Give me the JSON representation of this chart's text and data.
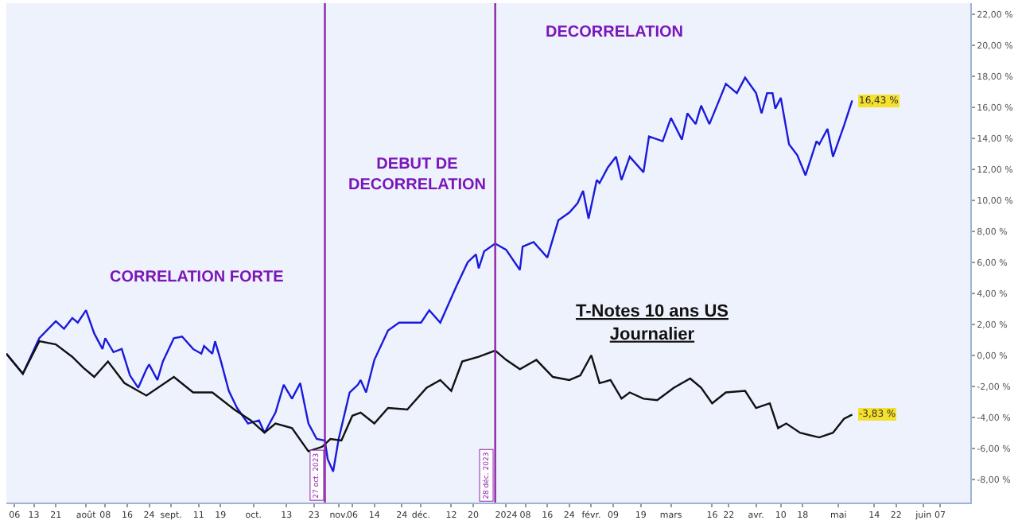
{
  "chart_data": {
    "type": "line",
    "legend": false,
    "grid": false,
    "marker": "none",
    "line_style": "solid",
    "xlim": [
      "2023-07-03",
      "2024-06-18"
    ],
    "ylim": [
      -9.5,
      22.7
    ],
    "xticks": [
      {
        "value": "2023-07-06",
        "label": "06"
      },
      {
        "value": "2023-07-13",
        "label": "13"
      },
      {
        "value": "2023-07-21",
        "label": "21"
      },
      {
        "value": "2023-08-01",
        "label": "août"
      },
      {
        "value": "2023-08-08",
        "label": "08"
      },
      {
        "value": "2023-08-16",
        "label": "16"
      },
      {
        "value": "2023-08-24",
        "label": "24"
      },
      {
        "value": "2023-09-01",
        "label": "sept."
      },
      {
        "value": "2023-09-11",
        "label": "11"
      },
      {
        "value": "2023-09-19",
        "label": "19"
      },
      {
        "value": "2023-10-01",
        "label": "oct."
      },
      {
        "value": "2023-10-13",
        "label": "13"
      },
      {
        "value": "2023-10-23",
        "label": "23"
      },
      {
        "value": "2023-11-01",
        "label": "nov."
      },
      {
        "value": "2023-11-06",
        "label": "06"
      },
      {
        "value": "2023-11-14",
        "label": "14"
      },
      {
        "value": "2023-11-24",
        "label": "24"
      },
      {
        "value": "2023-12-01",
        "label": "déc."
      },
      {
        "value": "2023-12-12",
        "label": "12"
      },
      {
        "value": "2023-12-20",
        "label": "20"
      },
      {
        "value": "2024-01-01",
        "label": "2024"
      },
      {
        "value": "2024-01-08",
        "label": "08"
      },
      {
        "value": "2024-01-16",
        "label": "16"
      },
      {
        "value": "2024-01-24",
        "label": "24"
      },
      {
        "value": "2024-02-01",
        "label": "févr."
      },
      {
        "value": "2024-02-09",
        "label": "09"
      },
      {
        "value": "2024-02-19",
        "label": "19"
      },
      {
        "value": "2024-03-01",
        "label": "mars"
      },
      {
        "value": "2024-03-16",
        "label": "16"
      },
      {
        "value": "2024-03-22",
        "label": "22"
      },
      {
        "value": "2024-04-01",
        "label": "avr."
      },
      {
        "value": "2024-04-10",
        "label": "10"
      },
      {
        "value": "2024-04-18",
        "label": "18"
      },
      {
        "value": "2024-05-01",
        "label": "mai"
      },
      {
        "value": "2024-05-14",
        "label": "14"
      },
      {
        "value": "2024-05-22",
        "label": "22"
      },
      {
        "value": "2024-06-01",
        "label": "juin"
      },
      {
        "value": "2024-06-07",
        "label": "07"
      }
    ],
    "yticks": [
      {
        "value": -8,
        "label": "-8,00 %"
      },
      {
        "value": -6,
        "label": "-6,00 %"
      },
      {
        "value": -4,
        "label": "-4,00 %"
      },
      {
        "value": -2,
        "label": "-2,00 %"
      },
      {
        "value": 0,
        "label": "0,00 %"
      },
      {
        "value": 2,
        "label": "2,00 %"
      },
      {
        "value": 4,
        "label": "4,00 %"
      },
      {
        "value": 6,
        "label": "6,00 %"
      },
      {
        "value": 8,
        "label": "8,00 %"
      },
      {
        "value": 10,
        "label": "10,00 %"
      },
      {
        "value": 12,
        "label": "12,00 %"
      },
      {
        "value": 14,
        "label": "14,00 %"
      },
      {
        "value": 16,
        "label": "16,00 %"
      },
      {
        "value": 18,
        "label": "18,00 %"
      },
      {
        "value": 20,
        "label": "20,00 %"
      },
      {
        "value": 22,
        "label": "22,00 %"
      }
    ],
    "series": [
      {
        "color": "#1a1adb",
        "x": [
          "2023-07-03",
          "2023-07-09",
          "2023-07-15",
          "2023-07-21",
          "2023-07-24",
          "2023-07-27",
          "2023-07-29",
          "2023-08-01",
          "2023-08-04",
          "2023-08-07",
          "2023-08-08",
          "2023-08-11",
          "2023-08-14",
          "2023-08-17",
          "2023-08-20",
          "2023-08-23",
          "2023-08-24",
          "2023-08-27",
          "2023-08-29",
          "2023-09-02",
          "2023-09-05",
          "2023-09-09",
          "2023-09-12",
          "2023-09-13",
          "2023-09-16",
          "2023-09-17",
          "2023-09-19",
          "2023-09-22",
          "2023-09-25",
          "2023-09-29",
          "2023-10-03",
          "2023-10-05",
          "2023-10-09",
          "2023-10-12",
          "2023-10-15",
          "2023-10-18",
          "2023-10-21",
          "2023-10-24",
          "2023-10-27",
          "2023-10-28",
          "2023-10-30",
          "2023-11-01",
          "2023-11-05",
          "2023-11-08",
          "2023-11-09",
          "2023-11-11",
          "2023-11-14",
          "2023-11-19",
          "2023-11-23",
          "2023-12-01",
          "2023-12-04",
          "2023-12-08",
          "2023-12-14",
          "2023-12-18",
          "2023-12-21",
          "2023-12-22",
          "2023-12-24",
          "2023-12-28",
          "2024-01-01",
          "2024-01-06",
          "2024-01-07",
          "2024-01-11",
          "2024-01-16",
          "2024-01-20",
          "2024-01-24",
          "2024-01-27",
          "2024-01-29",
          "2024-01-31",
          "2024-02-03",
          "2024-02-04",
          "2024-02-07",
          "2024-02-10",
          "2024-02-12",
          "2024-02-15",
          "2024-02-20",
          "2024-02-22",
          "2024-02-27",
          "2024-03-01",
          "2024-03-05",
          "2024-03-07",
          "2024-03-10",
          "2024-03-12",
          "2024-03-15",
          "2024-03-21",
          "2024-03-25",
          "2024-03-28",
          "2024-04-01",
          "2024-04-03",
          "2024-04-05",
          "2024-04-07",
          "2024-04-08",
          "2024-04-10",
          "2024-04-13",
          "2024-04-16",
          "2024-04-19",
          "2024-04-23",
          "2024-04-24",
          "2024-04-27",
          "2024-04-29",
          "2024-05-03",
          "2024-05-06"
        ],
        "values": [
          0.1,
          -1.2,
          1.1,
          2.2,
          1.7,
          2.4,
          2.1,
          2.9,
          1.4,
          0.4,
          1.1,
          0.2,
          0.4,
          -1.3,
          -2.1,
          -0.9,
          -0.6,
          -1.6,
          -0.4,
          1.1,
          1.2,
          0.4,
          0.1,
          0.6,
          0.1,
          0.9,
          -0.3,
          -2.3,
          -3.4,
          -4.4,
          -4.2,
          -5.0,
          -3.7,
          -1.9,
          -2.8,
          -1.8,
          -4.4,
          -5.4,
          -5.5,
          -6.7,
          -7.5,
          -5.4,
          -2.4,
          -1.9,
          -1.6,
          -2.4,
          -0.3,
          1.6,
          2.1,
          2.1,
          2.9,
          2.1,
          4.5,
          6.0,
          6.5,
          5.6,
          6.7,
          7.2,
          6.8,
          5.5,
          7.0,
          7.3,
          6.3,
          8.7,
          9.2,
          9.8,
          10.6,
          8.8,
          11.3,
          11.1,
          12.1,
          12.8,
          11.3,
          12.8,
          11.8,
          14.1,
          13.8,
          15.3,
          13.9,
          15.6,
          14.9,
          16.1,
          14.9,
          17.5,
          16.9,
          17.9,
          16.9,
          15.6,
          16.9,
          16.9,
          15.9,
          16.6,
          13.6,
          12.9,
          11.6,
          13.8,
          13.6,
          14.6,
          12.8,
          14.8,
          16.43
        ]
      },
      {
        "name": "T-Notes 10 ans US\nJournalier",
        "color": "#111111",
        "x": [
          "2023-07-03",
          "2023-07-09",
          "2023-07-15",
          "2023-07-21",
          "2023-07-27",
          "2023-07-31",
          "2023-08-04",
          "2023-08-09",
          "2023-08-15",
          "2023-08-23",
          "2023-09-02",
          "2023-09-09",
          "2023-09-16",
          "2023-09-24",
          "2023-09-30",
          "2023-10-05",
          "2023-10-09",
          "2023-10-15",
          "2023-10-21",
          "2023-10-26",
          "2023-10-29",
          "2023-11-02",
          "2023-11-06",
          "2023-11-09",
          "2023-11-14",
          "2023-11-19",
          "2023-11-26",
          "2023-12-03",
          "2023-12-08",
          "2023-12-12",
          "2023-12-16",
          "2023-12-22",
          "2023-12-28",
          "2024-01-01",
          "2024-01-06",
          "2024-01-12",
          "2024-01-18",
          "2024-01-24",
          "2024-01-28",
          "2024-02-01",
          "2024-02-04",
          "2024-02-08",
          "2024-02-12",
          "2024-02-15",
          "2024-02-20",
          "2024-02-25",
          "2024-03-02",
          "2024-03-08",
          "2024-03-12",
          "2024-03-16",
          "2024-03-21",
          "2024-03-28",
          "2024-04-01",
          "2024-04-06",
          "2024-04-09",
          "2024-04-12",
          "2024-04-17",
          "2024-04-24",
          "2024-04-29",
          "2024-05-03",
          "2024-05-06"
        ],
        "values": [
          0.1,
          -1.2,
          0.9,
          0.7,
          -0.1,
          -0.8,
          -1.4,
          -0.4,
          -1.8,
          -2.6,
          -1.4,
          -2.4,
          -2.4,
          -3.5,
          -4.2,
          -5.0,
          -4.4,
          -4.7,
          -6.2,
          -5.9,
          -5.4,
          -5.5,
          -3.9,
          -3.7,
          -4.4,
          -3.4,
          -3.5,
          -2.1,
          -1.6,
          -2.3,
          -0.4,
          -0.1,
          0.3,
          -0.3,
          -0.9,
          -0.3,
          -1.4,
          -1.6,
          -1.3,
          0.0,
          -1.8,
          -1.6,
          -2.8,
          -2.4,
          -2.8,
          -2.9,
          -2.1,
          -1.5,
          -2.1,
          -3.1,
          -2.4,
          -2.3,
          -3.4,
          -3.1,
          -4.7,
          -4.4,
          -5.0,
          -5.3,
          -5.0,
          -4.1,
          -3.83
        ]
      }
    ],
    "ref_lines": [
      {
        "axis": "x",
        "value": "2023-10-27",
        "label": "27 oct. 2023",
        "color": "#8e24aa"
      },
      {
        "axis": "x",
        "value": "2023-12-28",
        "label": "28 déc. 2023",
        "color": "#8e24aa"
      }
    ],
    "annotations": [
      "CORRELATION FORTE",
      "DEBUT DE\nDECORRELATION",
      "DECORRELATION",
      {
        "text": "16,43 %",
        "x": "2024-05-06",
        "y": 16.43
      },
      {
        "text": "-3,83 %",
        "x": "2024-05-06",
        "y": -3.83
      }
    ]
  }
}
